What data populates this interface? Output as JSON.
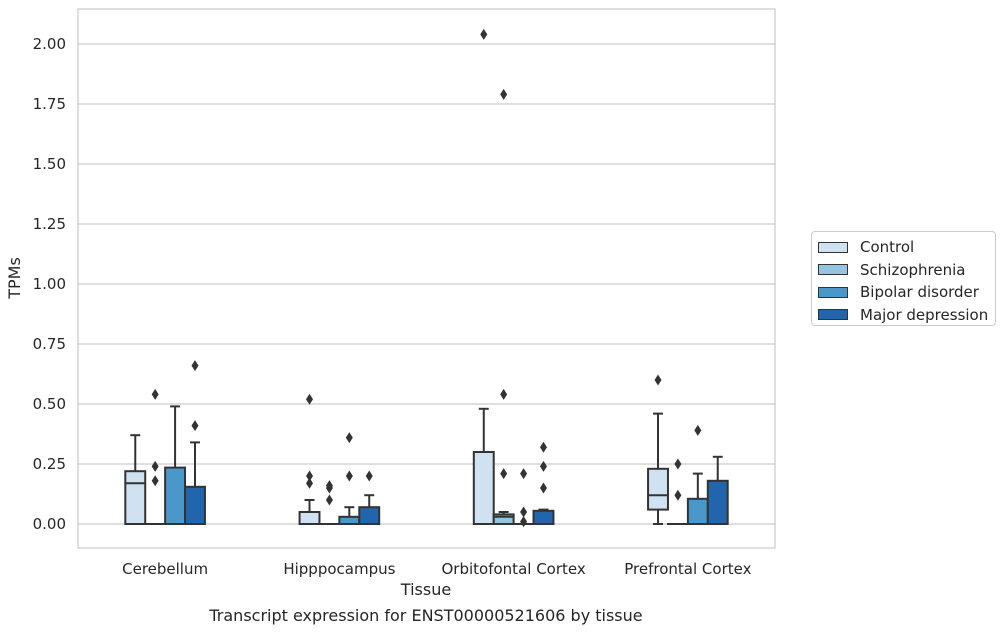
{
  "caption": "Transcript expression for ENST00000521606 by tissue",
  "chart_data": {
    "type": "box",
    "xlabel": "Tissue",
    "ylabel": "TPMs",
    "ylim": [
      -0.1,
      2.15
    ],
    "yticks": [
      "0.00",
      "0.25",
      "0.50",
      "0.75",
      "1.00",
      "1.25",
      "1.50",
      "1.75",
      "2.00"
    ],
    "categories": [
      "Cerebellum",
      "Hipppocampus",
      "Orbitofontal Cortex",
      "Prefrontal Cortex"
    ],
    "grid": true,
    "legend_position": "right",
    "series": [
      {
        "name": "Control",
        "color": "#d0e1f2",
        "boxes": [
          {
            "whislo": 0.0,
            "q1": 0.0,
            "med": 0.17,
            "q3": 0.22,
            "whishi": 0.37,
            "fliers": []
          },
          {
            "whislo": 0.0,
            "q1": 0.0,
            "med": 0.0,
            "q3": 0.05,
            "whishi": 0.1,
            "fliers": [
              0.17,
              0.2,
              0.52
            ]
          },
          {
            "whislo": 0.0,
            "q1": 0.0,
            "med": 0.0,
            "q3": 0.3,
            "whishi": 0.48,
            "fliers": [
              2.04
            ]
          },
          {
            "whislo": 0.0,
            "q1": 0.06,
            "med": 0.12,
            "q3": 0.23,
            "whishi": 0.46,
            "fliers": [
              0.6
            ]
          }
        ]
      },
      {
        "name": "Schizophrenia",
        "color": "#94c4df",
        "boxes": [
          {
            "whislo": 0.0,
            "q1": 0.0,
            "med": 0.0,
            "q3": 0.0,
            "whishi": 0.0,
            "fliers": [
              0.18,
              0.24,
              0.54
            ]
          },
          {
            "whislo": 0.0,
            "q1": 0.0,
            "med": 0.0,
            "q3": 0.0,
            "whishi": 0.0,
            "fliers": [
              0.1,
              0.15,
              0.16
            ]
          },
          {
            "whislo": 0.0,
            "q1": 0.0,
            "med": 0.03,
            "q3": 0.04,
            "whishi": 0.05,
            "fliers": [
              0.21,
              0.54,
              1.79
            ]
          },
          {
            "whislo": 0.0,
            "q1": 0.0,
            "med": 0.0,
            "q3": 0.0,
            "whishi": 0.0,
            "fliers": [
              0.12,
              0.25
            ]
          }
        ]
      },
      {
        "name": "Bipolar disorder",
        "color": "#4a98c9",
        "boxes": [
          {
            "whislo": 0.0,
            "q1": 0.0,
            "med": 0.0,
            "q3": 0.235,
            "whishi": 0.49,
            "fliers": []
          },
          {
            "whislo": 0.0,
            "q1": 0.0,
            "med": 0.0,
            "q3": 0.03,
            "whishi": 0.07,
            "fliers": [
              0.2,
              0.36
            ]
          },
          {
            "whislo": 0.0,
            "q1": 0.0,
            "med": 0.0,
            "q3": 0.0,
            "whishi": 0.0,
            "fliers": [
              0.01,
              0.05,
              0.21
            ]
          },
          {
            "whislo": 0.0,
            "q1": 0.0,
            "med": 0.0,
            "q3": 0.105,
            "whishi": 0.21,
            "fliers": [
              0.39
            ]
          }
        ]
      },
      {
        "name": "Major depression",
        "color": "#2166ac",
        "boxes": [
          {
            "whislo": 0.0,
            "q1": 0.0,
            "med": 0.0,
            "q3": 0.155,
            "whishi": 0.34,
            "fliers": [
              0.41,
              0.66
            ]
          },
          {
            "whislo": 0.0,
            "q1": 0.0,
            "med": 0.0,
            "q3": 0.07,
            "whishi": 0.12,
            "fliers": [
              0.2
            ]
          },
          {
            "whislo": 0.0,
            "q1": 0.0,
            "med": 0.0,
            "q3": 0.055,
            "whishi": 0.06,
            "fliers": [
              0.15,
              0.24,
              0.32
            ]
          },
          {
            "whislo": 0.0,
            "q1": 0.0,
            "med": 0.0,
            "q3": 0.18,
            "whishi": 0.28,
            "fliers": []
          }
        ]
      }
    ]
  }
}
